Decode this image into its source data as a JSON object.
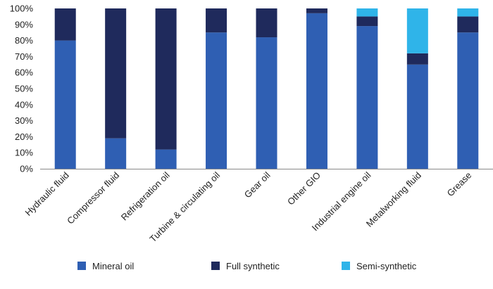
{
  "colors": {
    "mineral": "#2f5fb3",
    "full": "#1f2a5c",
    "semi": "#2fb4e9",
    "axis": "#8a8a8a"
  },
  "chart_data": {
    "type": "bar",
    "stacked": true,
    "categories": [
      "Hydraulic fluid",
      "Compressor fluid",
      "Refrigeration oil",
      "Turbine & circulating oil",
      "Gear oil",
      "Other GIO",
      "Industrial engine oil",
      "Metalworking fluid",
      "Grease"
    ],
    "series": [
      {
        "name": "Mineral oil",
        "color": "#2f5fb3",
        "values": [
          80,
          19,
          12,
          85,
          82,
          97,
          89,
          65,
          85
        ]
      },
      {
        "name": "Full synthetic",
        "color": "#1f2a5c",
        "values": [
          20,
          81,
          88,
          15,
          18,
          3,
          6,
          7,
          10
        ]
      },
      {
        "name": "Semi-synthetic",
        "color": "#2fb4e9",
        "values": [
          0,
          0,
          0,
          0,
          0,
          0,
          5,
          28,
          5
        ]
      }
    ],
    "y_ticks": [
      "0%",
      "10%",
      "20%",
      "30%",
      "40%",
      "50%",
      "60%",
      "70%",
      "80%",
      "90%",
      "100%"
    ],
    "ylim": [
      0,
      100
    ],
    "grid": false,
    "legend_position": "bottom"
  }
}
